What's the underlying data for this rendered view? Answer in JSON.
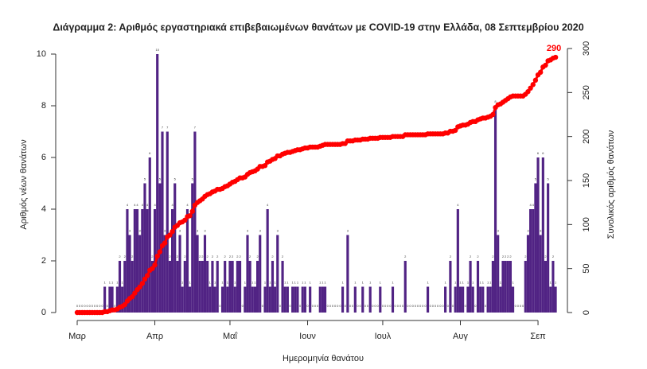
{
  "chart_data": {
    "type": "bar",
    "title": "Διάγραμμα 2: Αριθμός εργαστηριακά επιβεβαιωμένων θανάτων με COVID-19 στην Ελλάδα, 08 Σεπτεμβρίου 2020",
    "x_label": "Ημερομηνία θανάτου",
    "y_label": "Αριθμός νέων θανάτων",
    "y2_label": "Συνολικός αριθμός θανάτων",
    "categories": [
      "Μαρ",
      null,
      null,
      null,
      null,
      null,
      null,
      null,
      null,
      null,
      null,
      null,
      null,
      null,
      null,
      null,
      null,
      null,
      null,
      null,
      null,
      null,
      null,
      null,
      null,
      null,
      null,
      null,
      null,
      null,
      null,
      "Απρ",
      null,
      null,
      null,
      null,
      null,
      null,
      null,
      null,
      null,
      null,
      null,
      null,
      null,
      null,
      null,
      null,
      null,
      null,
      null,
      null,
      null,
      null,
      null,
      null,
      null,
      null,
      null,
      null,
      null,
      "Μαΐ",
      null,
      null,
      null,
      null,
      null,
      null,
      null,
      null,
      null,
      null,
      null,
      null,
      null,
      null,
      null,
      null,
      null,
      null,
      null,
      null,
      null,
      null,
      null,
      null,
      null,
      null,
      null,
      null,
      null,
      null,
      "Ιουν",
      null,
      null,
      null,
      null,
      null,
      null,
      null,
      null,
      null,
      null,
      null,
      null,
      null,
      null,
      null,
      null,
      null,
      null,
      null,
      null,
      null,
      null,
      null,
      null,
      null,
      null,
      null,
      null,
      null,
      "Ιουλ",
      null,
      null,
      null,
      null,
      null,
      null,
      null,
      null,
      null,
      null,
      null,
      null,
      null,
      null,
      null,
      null,
      null,
      null,
      null,
      null,
      null,
      null,
      null,
      null,
      null,
      null,
      null,
      null,
      null,
      null,
      "Αυγ",
      null,
      null,
      null,
      null,
      null,
      null,
      null,
      null,
      null,
      null,
      null,
      null,
      null,
      null,
      null,
      null,
      null,
      null,
      null,
      null,
      null,
      null,
      null,
      null,
      null,
      null,
      null,
      null,
      null,
      null,
      "Σεπ",
      null,
      null,
      null,
      null,
      null,
      null,
      null
    ],
    "series": [
      {
        "type": "bar",
        "color": "#512384",
        "values": [
          0,
          0,
          0,
          0,
          0,
          0,
          0,
          0,
          0,
          0,
          0,
          1,
          0,
          1,
          1,
          0,
          1,
          2,
          1,
          2,
          4,
          3,
          2,
          4,
          4,
          3,
          4,
          5,
          4,
          6,
          2,
          4,
          10,
          5,
          7,
          3,
          7,
          2,
          4,
          5,
          2,
          3,
          1,
          2,
          4,
          1,
          5,
          7,
          3,
          2,
          2,
          3,
          2,
          1,
          2,
          1,
          2,
          0,
          1,
          2,
          1,
          2,
          2,
          1,
          2,
          2,
          0,
          1,
          3,
          2,
          1,
          1,
          2,
          3,
          0,
          1,
          4,
          1,
          2,
          1,
          3,
          0,
          2,
          1,
          1,
          0,
          1,
          1,
          1,
          0,
          1,
          1,
          0,
          1,
          0,
          0,
          0,
          1,
          1,
          1,
          0,
          0,
          0,
          0,
          0,
          0,
          1,
          0,
          3,
          0,
          0,
          1,
          0,
          0,
          1,
          0,
          0,
          1,
          0,
          0,
          0,
          1,
          0,
          0,
          0,
          0,
          1,
          0,
          0,
          0,
          0,
          2,
          0,
          0,
          0,
          0,
          0,
          0,
          0,
          0,
          1,
          0,
          0,
          0,
          0,
          0,
          0,
          1,
          0,
          2,
          0,
          1,
          4,
          1,
          1,
          0,
          1,
          2,
          1,
          0,
          2,
          1,
          1,
          0,
          1,
          1,
          2,
          8,
          3,
          1,
          2,
          2,
          2,
          2,
          1,
          0,
          0,
          0,
          0,
          2,
          3,
          4,
          4,
          5,
          6,
          3,
          6,
          2,
          5,
          1,
          2,
          1
        ]
      },
      {
        "type": "line",
        "axis": "y2",
        "color": "#ff0000",
        "values": [
          0,
          0,
          0,
          0,
          0,
          0,
          0,
          0,
          0,
          0,
          0,
          1,
          1,
          2,
          3,
          3,
          4,
          6,
          7,
          9,
          13,
          16,
          18,
          22,
          26,
          29,
          33,
          38,
          42,
          48,
          50,
          54,
          64,
          69,
          76,
          79,
          86,
          88,
          92,
          97,
          99,
          102,
          103,
          105,
          109,
          110,
          115,
          122,
          125,
          127,
          129,
          132,
          134,
          135,
          137,
          138,
          140,
          140,
          141,
          143,
          144,
          146,
          148,
          149,
          151,
          153,
          153,
          154,
          157,
          159,
          160,
          161,
          163,
          166,
          166,
          167,
          171,
          172,
          174,
          175,
          178,
          178,
          180,
          181,
          182,
          182,
          183,
          184,
          185,
          185,
          186,
          187,
          187,
          188,
          188,
          188,
          188,
          189,
          190,
          191,
          191,
          191,
          191,
          191,
          191,
          191,
          192,
          192,
          195,
          195,
          195,
          196,
          196,
          196,
          197,
          197,
          197,
          198,
          198,
          198,
          198,
          199,
          199,
          199,
          199,
          199,
          200,
          200,
          200,
          200,
          200,
          202,
          202,
          202,
          202,
          202,
          202,
          202,
          202,
          202,
          203,
          203,
          203,
          203,
          203,
          203,
          203,
          204,
          204,
          206,
          206,
          207,
          211,
          212,
          213,
          213,
          214,
          216,
          217,
          217,
          219,
          220,
          221,
          221,
          222,
          223,
          225,
          233,
          236,
          237,
          239,
          241,
          243,
          245,
          246,
          246,
          246,
          246,
          246,
          248,
          251,
          255,
          259,
          264,
          270,
          273,
          279,
          281,
          286,
          287,
          289,
          290
        ]
      }
    ],
    "ylim": [
      0,
      10
    ],
    "yticks": [
      0,
      2,
      4,
      6,
      8,
      10
    ],
    "y2lim": [
      0,
      300
    ],
    "y2ticks": [
      0,
      50,
      100,
      150,
      200,
      250,
      300
    ]
  }
}
